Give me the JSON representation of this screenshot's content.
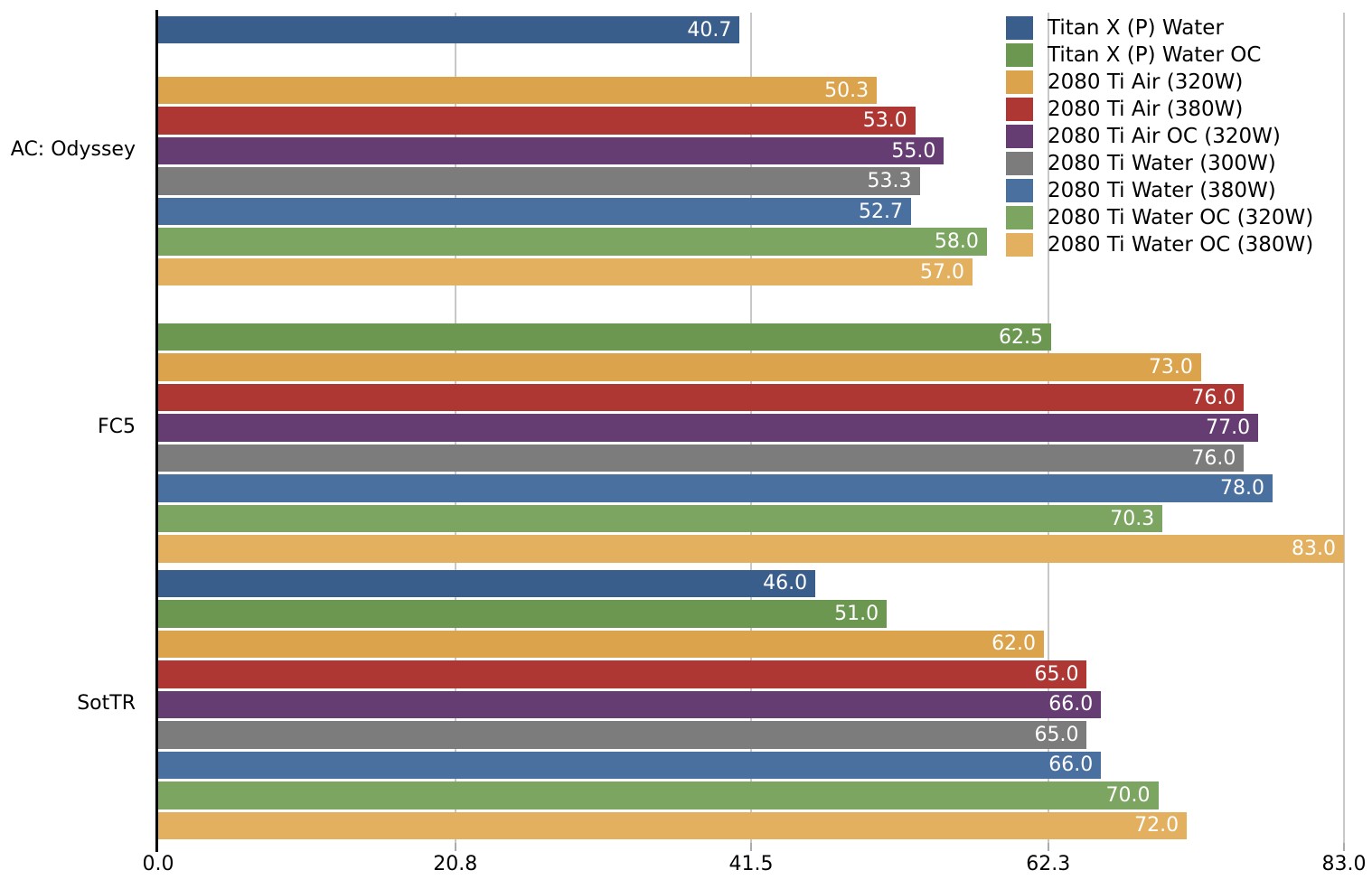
{
  "chart_data": {
    "type": "bar",
    "orientation": "horizontal",
    "title": "",
    "xlabel": "",
    "ylabel": "",
    "categories": [
      "AC: Odyssey",
      "FC5",
      "SotTR"
    ],
    "series": [
      {
        "name": "Titan X (P) Water",
        "color": "#3A5E8C",
        "values": [
          40.7,
          null,
          46.0
        ]
      },
      {
        "name": "Titan X (P) Water OC",
        "color": "#6C9750",
        "values": [
          null,
          62.5,
          51.0
        ]
      },
      {
        "name": "2080 Ti Air (320W)",
        "color": "#DBA34C",
        "values": [
          50.3,
          73.0,
          62.0
        ]
      },
      {
        "name": "2080 Ti Air (380W)",
        "color": "#AE3733",
        "values": [
          53.0,
          76.0,
          65.0
        ]
      },
      {
        "name": "2080 Ti Air OC (320W)",
        "color": "#663D72",
        "values": [
          55.0,
          77.0,
          66.0
        ]
      },
      {
        "name": "2080 Ti Water (300W)",
        "color": "#7C7C7C",
        "values": [
          53.3,
          76.0,
          65.0
        ]
      },
      {
        "name": "2080 Ti Water (380W)",
        "color": "#4A70A0",
        "values": [
          52.7,
          78.0,
          66.0
        ]
      },
      {
        "name": "2080 Ti Water OC (320W)",
        "color": "#7DA562",
        "values": [
          58.0,
          70.3,
          70.0
        ]
      },
      {
        "name": "2080 Ti Water OC (380W)",
        "color": "#E2B05F",
        "values": [
          57.0,
          83.0,
          72.0
        ]
      }
    ],
    "xlim": [
      0,
      83
    ],
    "xticks": [
      0.0,
      20.8,
      41.5,
      62.3,
      83.0
    ],
    "xtick_labels": [
      "0.0",
      "20.8",
      "41.5",
      "62.3",
      "83.0"
    ],
    "value_label_format": "one-decimal",
    "value_labels_inside_bar": true,
    "grid": "vertical-gridlines",
    "legend_position": "top-right",
    "colors": {
      "background": "#FFFFFF",
      "axis_line": "#000000",
      "gridline": "#C8C8C8",
      "tick_mark": "#ABABAB",
      "bar_value_text": "#FFFFFF",
      "label_text": "#000000"
    }
  }
}
